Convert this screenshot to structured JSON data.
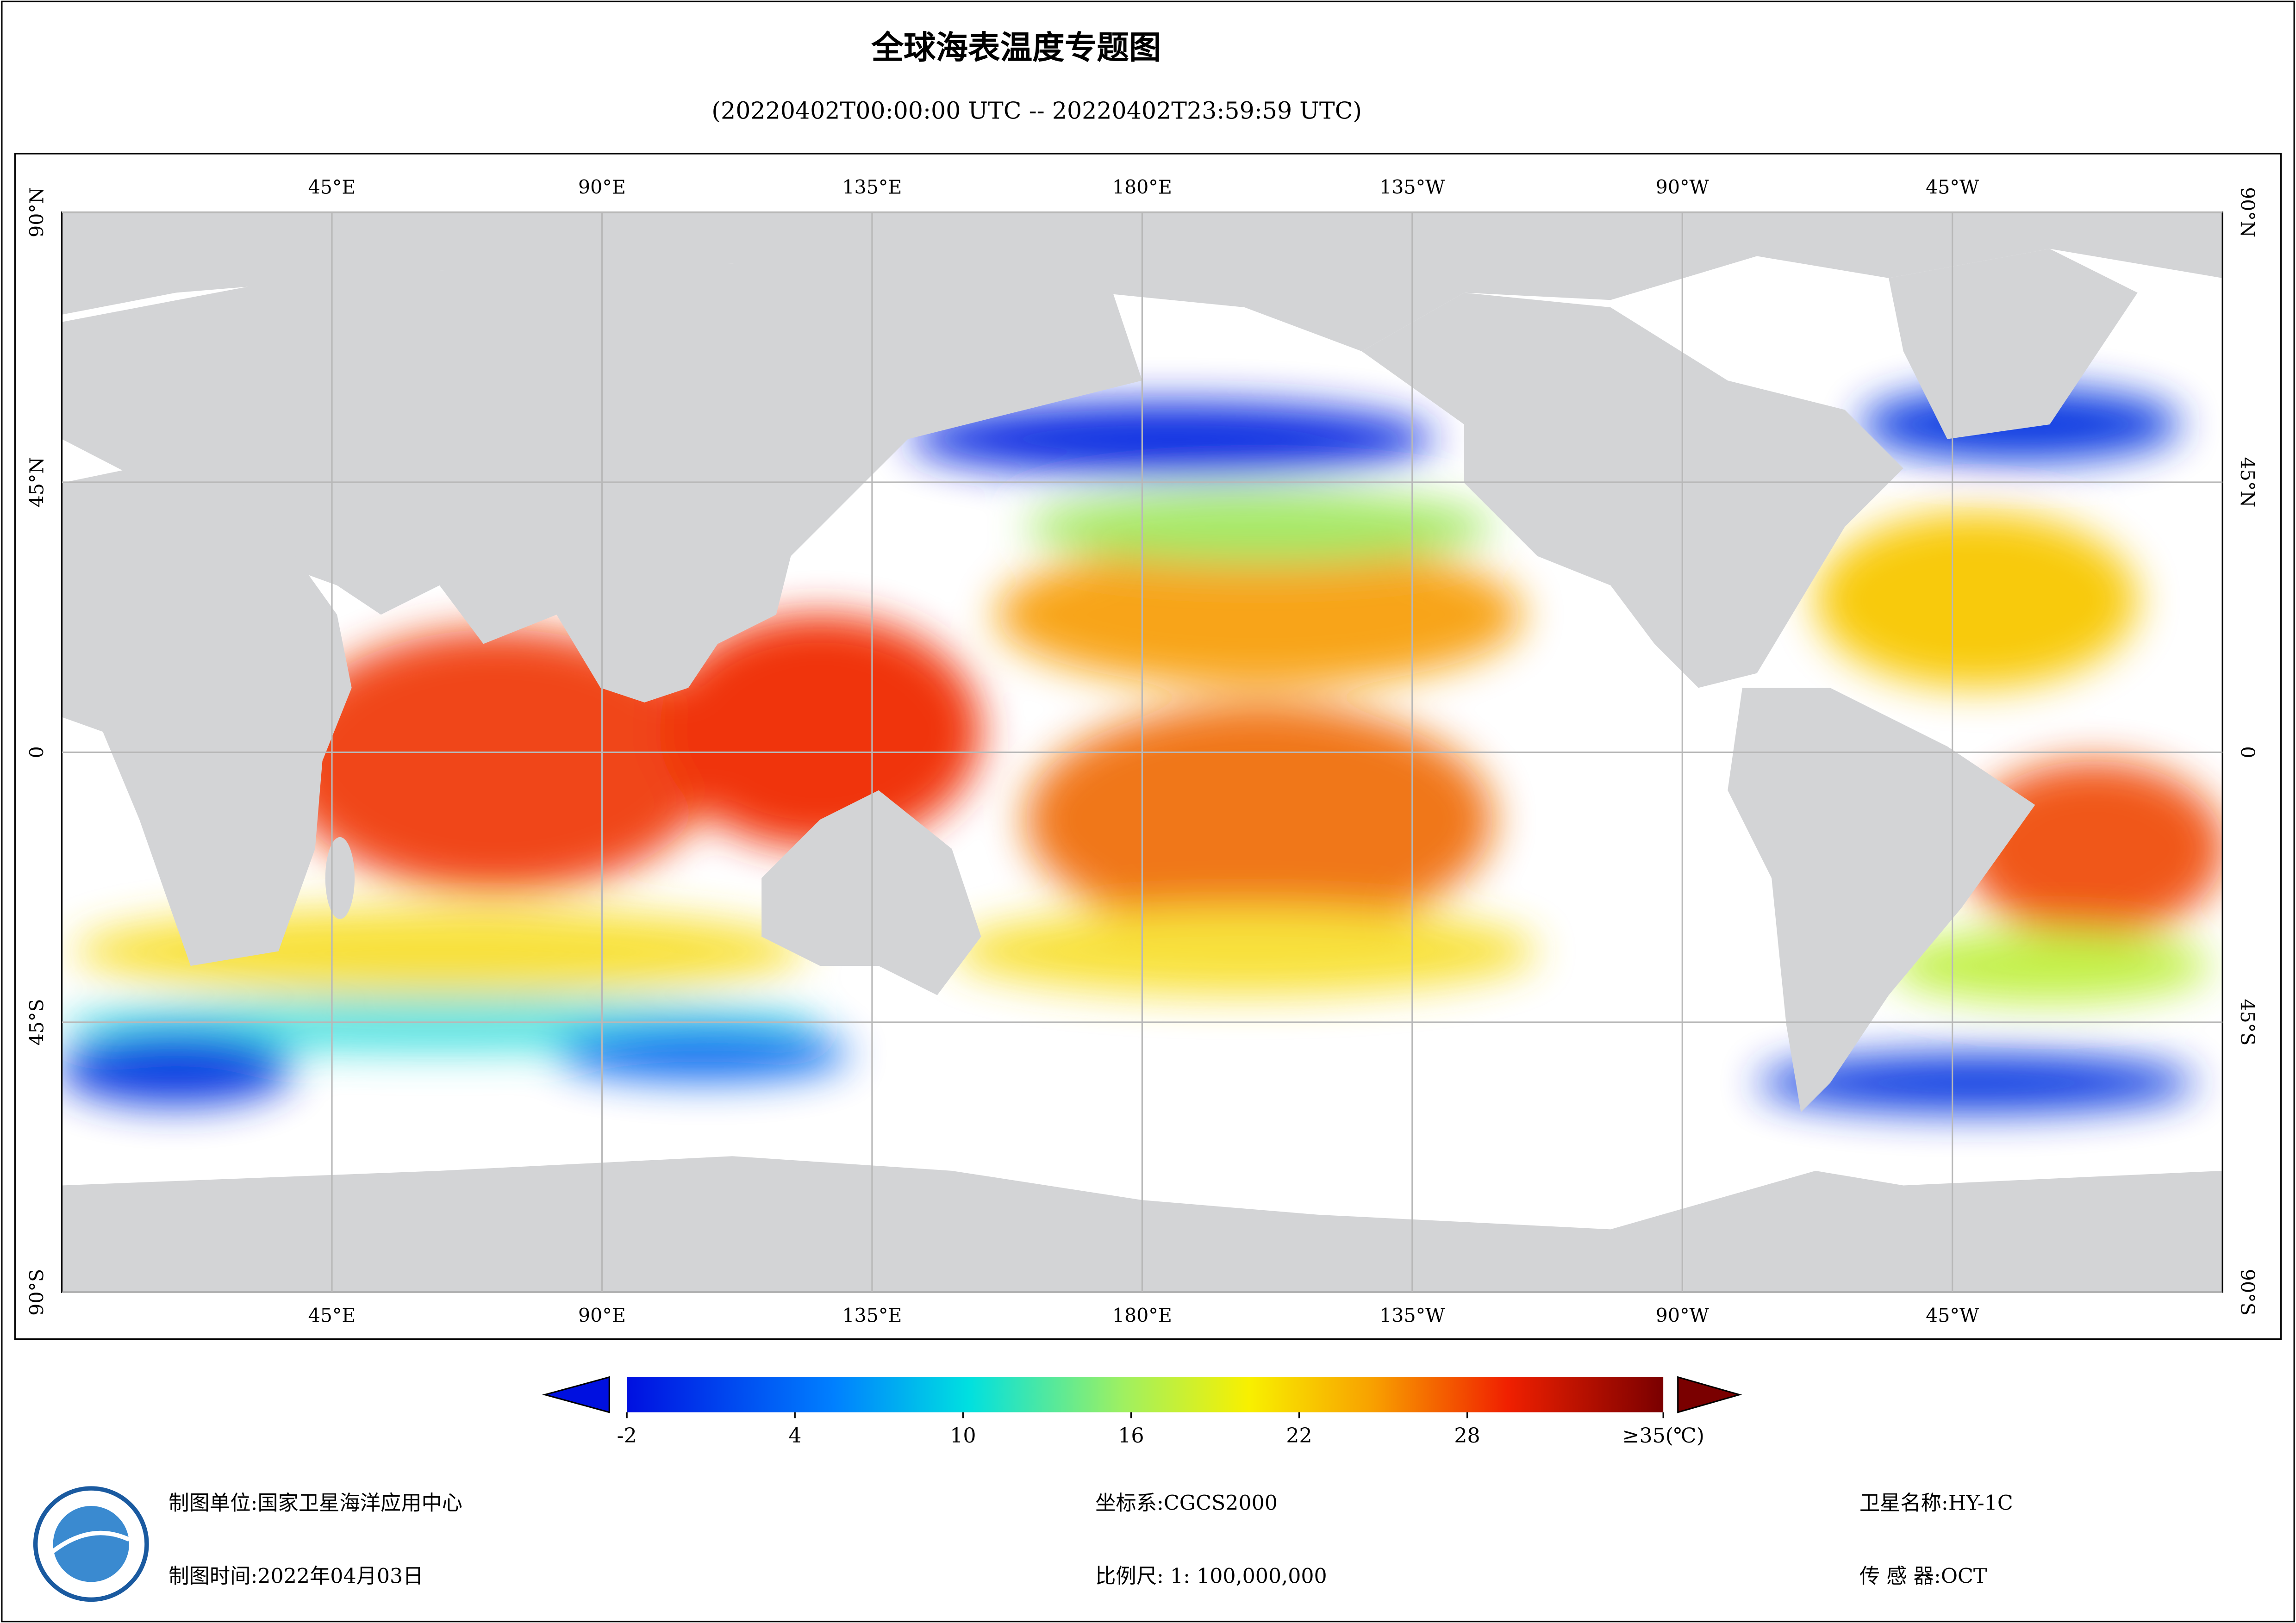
{
  "header": {
    "title": "全球海表温度专题图",
    "subtitle": "(20220402T00:00:00 UTC -- 20220402T23:59:59 UTC)"
  },
  "map": {
    "xlim": [
      0,
      360
    ],
    "ylim": [
      90,
      -90
    ],
    "xticks": [
      {
        "value": 45,
        "label": "45°E"
      },
      {
        "value": 90,
        "label": "90°E"
      },
      {
        "value": 135,
        "label": "135°E"
      },
      {
        "value": 180,
        "label": "180°E"
      },
      {
        "value": -135,
        "label": "135°W"
      },
      {
        "value": -90,
        "label": "90°W"
      },
      {
        "value": -45,
        "label": "45°W"
      }
    ],
    "yticks": [
      {
        "value": 90,
        "label": "90°N"
      },
      {
        "value": 45,
        "label": "45°N"
      },
      0,
      {
        "value": -45,
        "label": "45°S"
      },
      {
        "value": -90,
        "label": "90°S"
      }
    ]
  },
  "colorbar": {
    "lim": [
      -2,
      35
    ],
    "ticks": [
      -2,
      4,
      10,
      16,
      22,
      28,
      {
        "value": 35,
        "label": "≥35(℃)"
      }
    ]
  },
  "footer": {
    "unit": "制图单位:国家卫星海洋应用中心",
    "time": "制图时间:2022年04月03日",
    "crs": "坐标系:CGCS2000",
    "scale": "比例尺: 1: 100,000,000",
    "satellite": "卫星名称:HY-1C",
    "sensor": "传 感 器:OCT"
  }
}
